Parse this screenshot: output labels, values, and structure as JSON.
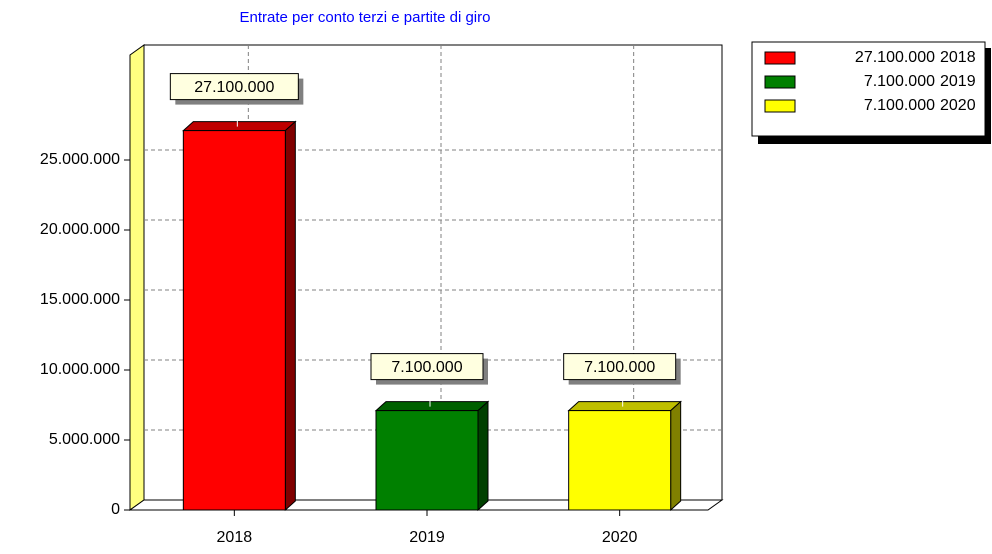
{
  "chart_data": {
    "type": "bar",
    "title": "Entrate per conto terzi e partite di giro",
    "categories": [
      "2018",
      "2019",
      "2020"
    ],
    "series": [
      {
        "name": "Entrate",
        "values": [
          27100000,
          7100000,
          7100000
        ],
        "value_labels": [
          "27.100.000",
          "7.100.000",
          "7.100.000"
        ],
        "colors": [
          "#ff0000",
          "#008000",
          "#ffff00"
        ]
      }
    ],
    "ylim": [
      0,
      32500000
    ],
    "yticks": [
      0,
      {
        "value": 5000000,
        "label": "5.000.000"
      },
      {
        "value": 10000000,
        "label": "10.000.000"
      },
      {
        "value": 15000000,
        "label": "15.000.000"
      },
      {
        "value": 20000000,
        "label": "20.000.000"
      },
      {
        "value": 25000000,
        "label": "25.000.000"
      }
    ],
    "grid": true,
    "legend": "right"
  }
}
